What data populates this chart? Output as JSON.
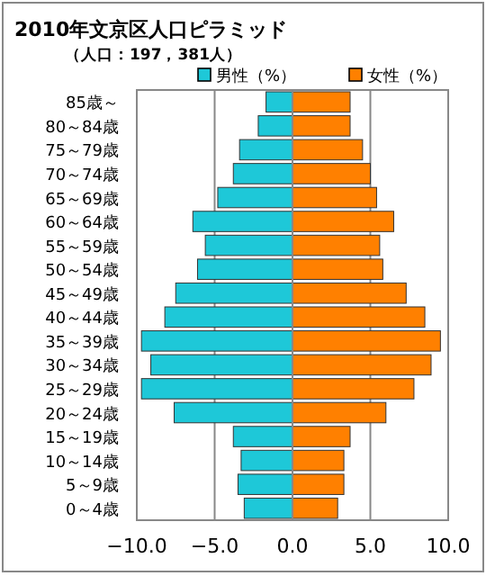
{
  "chart_data": {
    "type": "bar",
    "orientation": "horizontal",
    "stacked": true,
    "title": "2010年文京区人口ピラミッド",
    "subtitle": "（人口：197，381人）",
    "categories": [
      "85歳～",
      "80～84歳",
      "75～79歳",
      "70～74歳",
      "65～69歳",
      "60～64歳",
      "55～59歳",
      "50～54歳",
      "45～49歳",
      "40～44歳",
      "35～39歳",
      "30～34歳",
      "25～29歳",
      "20～24歳",
      "15～19歳",
      "10～14歳",
      "5～9歳",
      "0～4歳"
    ],
    "series": [
      {
        "name": "男性（%）",
        "color": "#1ec8d8",
        "values": [
          -1.7,
          -2.2,
          -3.4,
          -3.8,
          -4.8,
          -6.4,
          -5.6,
          -6.1,
          -7.5,
          -8.2,
          -9.7,
          -9.1,
          -9.7,
          -7.6,
          -3.8,
          -3.3,
          -3.5,
          -3.1
        ]
      },
      {
        "name": "女性（%）",
        "color": "#ff8000",
        "values": [
          3.7,
          3.7,
          4.5,
          5.0,
          5.4,
          6.5,
          5.6,
          5.8,
          7.3,
          8.5,
          9.5,
          8.9,
          7.8,
          6.0,
          3.7,
          3.3,
          3.3,
          2.9
        ]
      }
    ],
    "xlim": [
      -10,
      10
    ],
    "xticks": [
      {
        "value": -10,
        "label": "−10.0"
      },
      {
        "value": -5,
        "label": "−5.0"
      },
      {
        "value": 0,
        "label": "0.0"
      },
      {
        "value": 5,
        "label": "5.0"
      },
      {
        "value": 10,
        "label": "10.0"
      }
    ],
    "grid": "x",
    "legend": "top right"
  }
}
